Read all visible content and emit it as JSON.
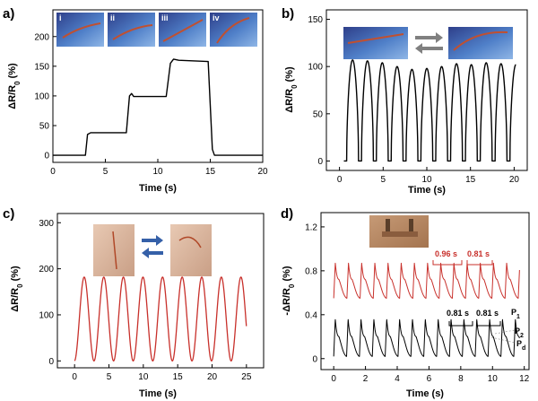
{
  "chart_data": [
    {
      "id": "a",
      "panel_label": "a)",
      "type": "line",
      "xlabel": "Time (s)",
      "ylabel_main": "ΔR/R",
      "ylabel_sub": "0",
      "ylabel_unit": " (%)",
      "xlim": [
        0,
        20
      ],
      "ylim": [
        -12,
        245
      ],
      "xticks": [
        0,
        5,
        10,
        15,
        20
      ],
      "yticks": [
        0,
        50,
        100,
        150,
        200
      ],
      "grid": false,
      "line_color": "#000000",
      "inset_labels": [
        "i",
        "ii",
        "iii",
        "iv"
      ],
      "series": [
        {
          "points": [
            [
              0,
              0
            ],
            [
              3.1,
              0
            ],
            [
              3.3,
              35
            ],
            [
              3.6,
              38
            ],
            [
              7.0,
              38
            ],
            [
              7.3,
              100
            ],
            [
              7.5,
              104
            ],
            [
              7.7,
              99
            ],
            [
              10.8,
              99
            ],
            [
              11.2,
              155
            ],
            [
              11.5,
              162
            ],
            [
              12.0,
              160
            ],
            [
              14.8,
              158
            ],
            [
              15.2,
              10
            ],
            [
              15.4,
              0
            ],
            [
              20,
              0
            ]
          ]
        }
      ]
    },
    {
      "id": "b",
      "panel_label": "b)",
      "type": "line",
      "xlabel": "Time (s)",
      "ylabel_main": "ΔR/R",
      "ylabel_sub": "0",
      "ylabel_unit": " (%)",
      "xlim": [
        -1.5,
        21.5
      ],
      "ylim": [
        -10,
        160
      ],
      "xticks": [
        0,
        5,
        10,
        15,
        20
      ],
      "yticks": [
        0,
        50,
        100,
        150
      ],
      "grid": false,
      "line_color": "#000000",
      "pulses": {
        "centers": [
          1.5,
          3.2,
          4.9,
          6.6,
          8.3,
          10.0,
          11.7,
          13.4,
          15.1,
          16.8,
          18.5,
          20.2
        ],
        "peaks": [
          107,
          106,
          104,
          100,
          97,
          98,
          100,
          103,
          102,
          104,
          103,
          102
        ],
        "baseline": 0,
        "start": 0.5,
        "end": 20.2
      }
    },
    {
      "id": "c",
      "panel_label": "c)",
      "type": "line",
      "xlabel": "Time (s)",
      "ylabel_main": "ΔR/R",
      "ylabel_sub": "0",
      "ylabel_unit": " (%)",
      "xlim": [
        -2.5,
        27.5
      ],
      "ylim": [
        -15,
        320
      ],
      "xticks": [
        0,
        5,
        10,
        15,
        20,
        25
      ],
      "yticks": [
        0,
        100,
        200,
        300
      ],
      "grid": false,
      "line_color": "#c8302b",
      "wave": {
        "amplitude": 182,
        "period": 2.85,
        "start": 0,
        "end": 25,
        "peak_at": 1.4,
        "peak_decay": 5
      }
    },
    {
      "id": "d",
      "panel_label": "d)",
      "type": "line",
      "xlabel": "Time (s)",
      "ylabel_main": "-ΔR/R",
      "ylabel_sub": "0",
      "ylabel_unit": " (%)",
      "xlim": [
        -0.8,
        12.3
      ],
      "ylim": [
        -0.1,
        1.33
      ],
      "xticks": [
        0,
        2,
        4,
        6,
        8,
        10,
        12
      ],
      "yticks": [
        0.0,
        0.4,
        0.8,
        1.2
      ],
      "grid": false,
      "series": [
        {
          "color": "#c8302b",
          "base": 0.55,
          "amplitude": 0.32,
          "period": 0.83,
          "start": 0,
          "end": 11.7
        },
        {
          "color": "#000000",
          "base": 0.02,
          "amplitude": 0.34,
          "period": 0.81,
          "start": 0,
          "end": 11.7
        }
      ],
      "annotations": {
        "red_interval_1": "0.96 s",
        "red_interval_2": "0.81 s",
        "black_interval_1": "0.81 s",
        "black_interval_2": "0.81 s",
        "p1": "P",
        "p1_sub": "1",
        "p2": "P",
        "p2_sub": "2",
        "pd": "P",
        "pd_sub": "d"
      }
    }
  ]
}
